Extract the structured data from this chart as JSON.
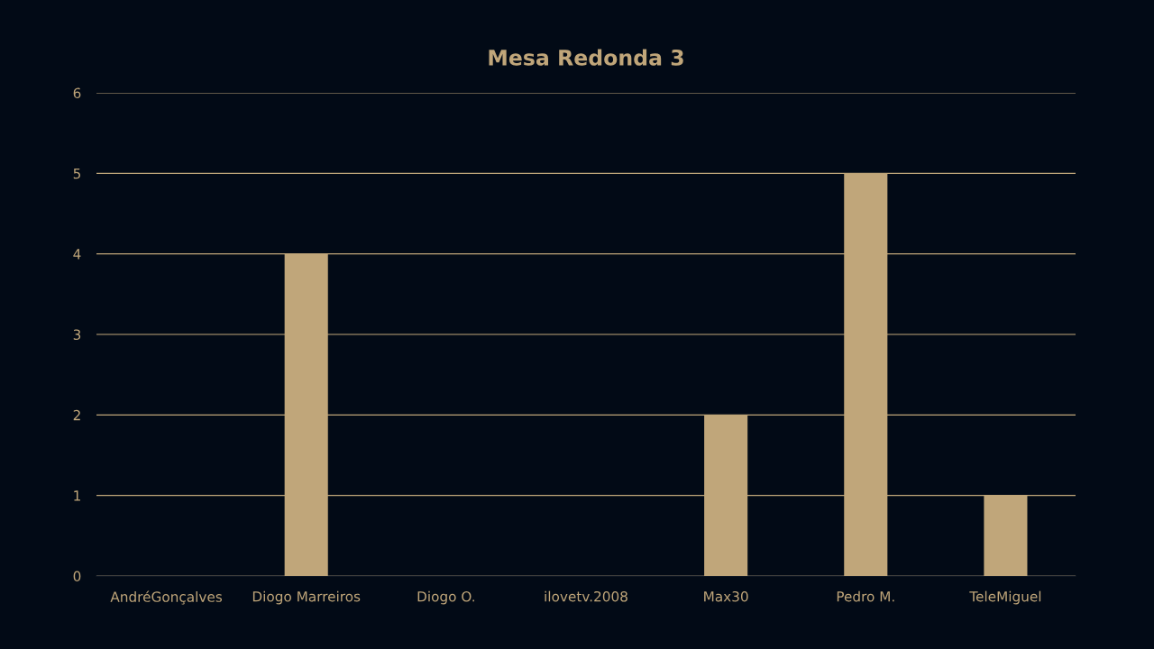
{
  "chart_data": {
    "type": "bar",
    "title": "Mesa Redonda 3",
    "categories": [
      "AndréGonçalves",
      "Diogo Marreiros",
      "Diogo O.",
      "ilovetv.2008",
      "Max30",
      "Pedro M.",
      "TeleMiguel"
    ],
    "values": [
      0,
      4,
      0,
      0,
      2,
      5,
      1
    ],
    "color": "#c0a67a",
    "ylim": [
      0,
      6
    ],
    "yticks": [
      0,
      1,
      2,
      3,
      4,
      5,
      6
    ],
    "grid": "y"
  }
}
